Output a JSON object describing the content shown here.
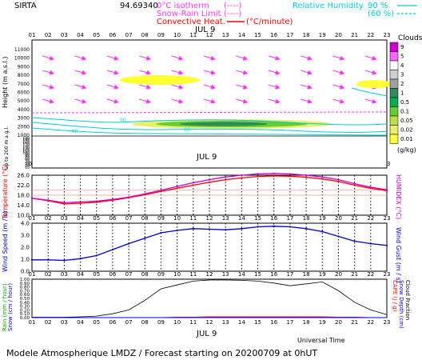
{
  "header": {
    "station": "SIRTA",
    "coords": "94.69340",
    "legend_left": [
      {
        "label": "0°C isotherm",
        "code": "(----)",
        "color": "#ff33ff"
      },
      {
        "label": "Snow-Rain Limit",
        "code": "(----)",
        "color": "#ff33ff"
      },
      {
        "label": "Convective Heat.",
        "code": "(°C/minute)",
        "color": "#ff0000"
      }
    ],
    "legend_right": [
      {
        "label": "Relative Humidity",
        "value": "90 %",
        "color": "#00ccdd"
      },
      {
        "label": "",
        "value": "(60 %)",
        "color": "#00ccdd"
      }
    ]
  },
  "date_label": "JUL  9",
  "hours": [
    "01",
    "02",
    "03",
    "04",
    "05",
    "06",
    "07",
    "08",
    "09",
    "10",
    "11",
    "12",
    "13",
    "14",
    "15",
    "16",
    "17",
    "18",
    "19",
    "20",
    "21",
    "22",
    "23"
  ],
  "clouds_legend": {
    "title": "Clouds",
    "unit": "(g/kg)",
    "levels": [
      "9",
      "5",
      "4",
      "3",
      "2",
      "1",
      "0.5",
      "0.1",
      "0.05",
      "0.02",
      "0.01"
    ],
    "colors": [
      "#cc00cc",
      "#ff66ff",
      "#ffffff",
      "#cfcfcf",
      "#a0a0a0",
      "#2e8b57",
      "#00b050",
      "#66cc33",
      "#b8e04a",
      "#e8f06a",
      "#ffff33"
    ]
  },
  "footer": {
    "universal_time": "Universal Time",
    "title": "Modele Atmospherique LMDZ / Forecast starting on 20200709 at 0hUT"
  },
  "chart_data": [
    {
      "type": "area",
      "panel": "clouds-height",
      "ylabel": "Height (m a.s.l.)",
      "ylabel_lower": "Up to 200 m a.g.l.",
      "yticks_upper": [
        "11000",
        "10000",
        "9000",
        "8000",
        "7000",
        "6000",
        "5000",
        "4000",
        "3000",
        "2000",
        "1000"
      ],
      "yticks_lower": [
        "190",
        "180",
        "170",
        "160",
        "150",
        "140",
        "130",
        "120",
        "110",
        "100",
        "90",
        "80",
        "70",
        "60",
        "50",
        "40",
        "30",
        "20",
        "10"
      ],
      "contour_labels": [
        "90",
        "60",
        "60"
      ]
    },
    {
      "type": "line",
      "panel": "temperature",
      "ylabel": "Temperature (°C)",
      "ylabel_right": "HUMIDEX (°C)",
      "ylim": [
        10,
        26
      ],
      "yticks": [
        "26.0",
        "22.0",
        "18.0",
        "14.0",
        "10.0"
      ],
      "x": [
        "01",
        "02",
        "03",
        "04",
        "05",
        "06",
        "07",
        "08",
        "09",
        "10",
        "11",
        "12",
        "13",
        "14",
        "15",
        "16",
        "17",
        "18",
        "19",
        "20",
        "21",
        "22",
        "23"
      ],
      "series": [
        {
          "name": "",
          "color": "#ff0000",
          "values": [
            16.8,
            15.8,
            14.5,
            14.8,
            15.2,
            16.0,
            17.0,
            18.2,
            19.5,
            20.8,
            22.0,
            23.2,
            24.2,
            24.9,
            25.5,
            25.7,
            25.6,
            25.2,
            24.5,
            23.5,
            22.0,
            20.8,
            19.8
          ]
        },
        {
          "name": "",
          "color": "#cc00cc",
          "values": [
            16.8,
            16.0,
            15.0,
            15.3,
            15.6,
            16.3,
            17.2,
            18.5,
            20.0,
            21.5,
            23.0,
            24.2,
            25.3,
            26.0,
            26.5,
            26.7,
            26.5,
            26.0,
            25.3,
            24.2,
            22.6,
            21.2,
            20.2
          ]
        }
      ]
    },
    {
      "type": "line",
      "panel": "wind",
      "ylabel": "Wind Speed (m / s)",
      "ylabel_right": "Wind Gust (m / s)",
      "ylim": [
        0,
        4
      ],
      "yticks": [
        "4.0",
        "3.0",
        "2.0",
        "1.0",
        "0.0"
      ],
      "x": [
        "01",
        "02",
        "03",
        "04",
        "05",
        "06",
        "07",
        "08",
        "09",
        "10",
        "11",
        "12",
        "13",
        "14",
        "15",
        "16",
        "17",
        "18",
        "19",
        "20",
        "21",
        "22",
        "23"
      ],
      "series": [
        {
          "name": "",
          "color": "#0000cc",
          "values": [
            0.95,
            0.95,
            0.9,
            1.05,
            1.3,
            1.8,
            2.3,
            2.75,
            3.2,
            3.4,
            3.55,
            3.5,
            3.45,
            3.55,
            3.7,
            3.75,
            3.7,
            3.55,
            3.3,
            2.9,
            2.5,
            2.3,
            2.15
          ]
        }
      ]
    },
    {
      "type": "line",
      "panel": "precip",
      "ylabel": "Rain (mm / hour)",
      "ylabel2": "Snow (cm / hour)",
      "ylabel_right": "CAPE (J / g)",
      "ylabel_right2": "Snow Depth (cm)",
      "ylabel_right3": "Cloud Fraction",
      "xlabel": "Universal Time",
      "ylim": [
        0,
        1
      ],
      "yticks": [
        "1.00",
        "0.90",
        "0.80",
        "0.70",
        "0.60",
        "0.50",
        "0.40",
        "0.30",
        "0.20",
        "0.10",
        "0.00"
      ],
      "x": [
        "01",
        "02",
        "03",
        "04",
        "05",
        "06",
        "07",
        "08",
        "09",
        "10",
        "11",
        "12",
        "13",
        "14",
        "15",
        "16",
        "17",
        "18",
        "19",
        "20",
        "21",
        "22",
        "23"
      ],
      "series": [
        {
          "name": "",
          "color": "#000000",
          "values": [
            0.01,
            0.01,
            0.01,
            0.02,
            0.04,
            0.1,
            0.2,
            0.45,
            0.75,
            0.85,
            0.95,
            0.98,
            0.98,
            0.97,
            0.95,
            0.9,
            0.83,
            0.88,
            0.93,
            0.7,
            0.4,
            0.2,
            0.08
          ]
        },
        {
          "name": "",
          "color": "#ff0000",
          "values": [
            0.0,
            0.0,
            0.0,
            0.0,
            0.0,
            0.0,
            0.0,
            0.0,
            0.0,
            0.01,
            0.01,
            0.02,
            0.02,
            0.02,
            0.02,
            0.02,
            0.02,
            0.02,
            0.02,
            0.01,
            0.01,
            0.0,
            0.0
          ]
        },
        {
          "name": "",
          "color": "#0000ff",
          "values": [
            0.0,
            0.0,
            0.0,
            0.0,
            0.0,
            0.0,
            0.0,
            0.0,
            0.0,
            0.0,
            0.0,
            0.0,
            0.0,
            0.0,
            0.0,
            0.0,
            0.0,
            0.0,
            0.0,
            0.0,
            0.0,
            0.0,
            0.0
          ]
        }
      ]
    }
  ]
}
